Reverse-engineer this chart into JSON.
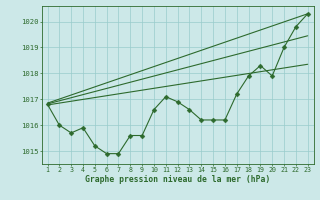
{
  "x": [
    1,
    2,
    3,
    4,
    5,
    6,
    7,
    8,
    9,
    10,
    11,
    12,
    13,
    14,
    15,
    16,
    17,
    18,
    19,
    20,
    21,
    22,
    23
  ],
  "series1": [
    1016.8,
    1016.0,
    1015.7,
    1015.9,
    1015.2,
    1014.9,
    1014.9,
    1015.6,
    1015.6,
    1016.6,
    1017.1,
    1016.9,
    1016.6,
    1016.2,
    1016.2,
    1016.2,
    1017.2,
    1017.9,
    1018.3,
    1017.9,
    1019.0,
    1019.8,
    1020.3
  ],
  "trend_lines": [
    {
      "x": [
        1,
        23
      ],
      "y": [
        1016.85,
        1020.3
      ]
    },
    {
      "x": [
        1,
        23
      ],
      "y": [
        1016.82,
        1019.45
      ]
    },
    {
      "x": [
        1,
        23
      ],
      "y": [
        1016.78,
        1018.35
      ]
    }
  ],
  "ylim": [
    1014.5,
    1020.6
  ],
  "yticks": [
    1015,
    1016,
    1017,
    1018,
    1019,
    1020
  ],
  "xticks": [
    1,
    2,
    3,
    4,
    5,
    6,
    7,
    8,
    9,
    10,
    11,
    12,
    13,
    14,
    15,
    16,
    17,
    18,
    19,
    20,
    21,
    22,
    23
  ],
  "xtick_labels": [
    "1",
    "2",
    "3",
    "4",
    "5",
    "6",
    "7",
    "8",
    "9",
    "10",
    "11",
    "12",
    "13",
    "14",
    "15",
    "16",
    "17",
    "18",
    "19",
    "20",
    "21",
    "22",
    "23"
  ],
  "line_color": "#2d6a2d",
  "bg_color": "#cce8e8",
  "grid_color": "#99cccc",
  "xlabel": "Graphe pression niveau de la mer (hPa)",
  "marker_size": 2.5,
  "lw": 0.8
}
